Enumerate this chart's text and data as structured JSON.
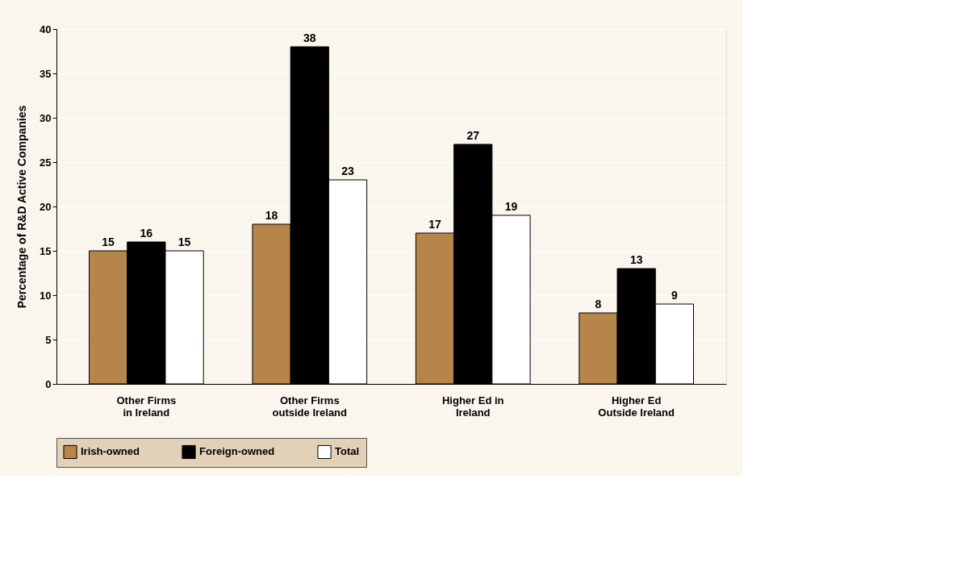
{
  "chart_data": {
    "type": "bar",
    "ylabel": "Percentage of R&D Active Companies",
    "categories": [
      "Other Firms\nin Ireland",
      "Other Firms\noutside Ireland",
      "Higher Ed in\nIreland",
      "Higher Ed\nOutside Ireland"
    ],
    "series": [
      {
        "name": "Irish-owned",
        "color": "#b5854a",
        "values": [
          15,
          18,
          17,
          8
        ]
      },
      {
        "name": "Foreign-owned",
        "color": "#000000",
        "values": [
          16,
          38,
          27,
          13
        ]
      },
      {
        "name": "Total",
        "color": "#ffffff",
        "values": [
          15,
          23,
          19,
          9
        ]
      }
    ],
    "ylim": [
      0,
      40
    ],
    "yticks": [
      0,
      5,
      10,
      15,
      20,
      25,
      30,
      35,
      40
    ],
    "grid": "y",
    "legend": "bottom",
    "data_labels": true
  }
}
